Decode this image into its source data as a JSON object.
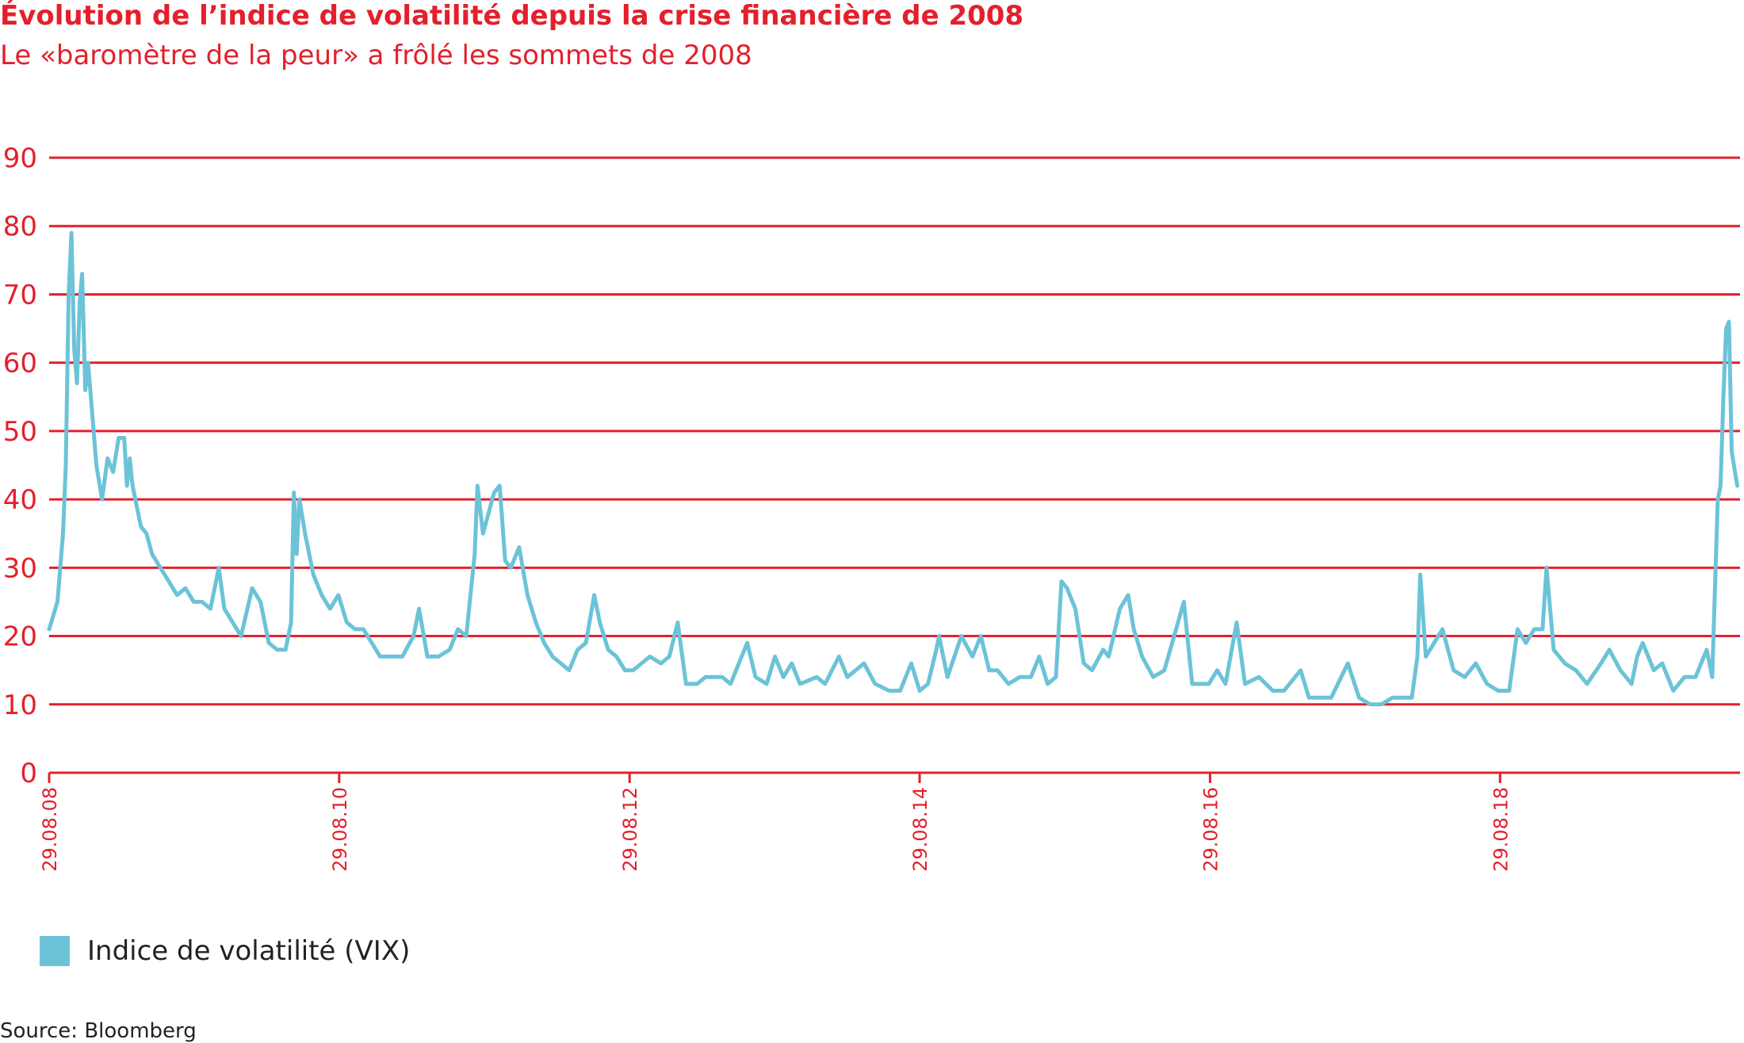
{
  "header": {
    "title": "Évolution de l’indice de volatilité depuis la crise financière de 2008",
    "subtitle": "Le «baromètre de la peur» a frôlé les sommets de 2008"
  },
  "legend": {
    "label": "Indice de volatilité (VIX)"
  },
  "source": "Source: Bloomberg",
  "colors": {
    "accent": "#e3202c",
    "series": "#6cc3d8",
    "text": "#222222"
  },
  "chart_data": {
    "type": "line",
    "title": "Évolution de l’indice de volatilité depuis la crise financière de 2008",
    "subtitle": "Le «baromètre de la peur» a frôlé les sommets de 2008",
    "xlabel": "",
    "ylabel": "",
    "ylim": [
      0,
      90
    ],
    "xlim": [
      "2008-08-29",
      "2020-04-24"
    ],
    "yticks": [
      "0",
      "10",
      "20",
      "30",
      "40",
      "50",
      "60",
      "70",
      "80",
      "90"
    ],
    "xticks": [
      {
        "label": "29.08.08",
        "date": "2008-08-29"
      },
      {
        "label": "29.08.10",
        "date": "2010-08-29"
      },
      {
        "label": "29.08.12",
        "date": "2012-08-29"
      },
      {
        "label": "29.08.14",
        "date": "2014-08-29"
      },
      {
        "label": "29.08.16",
        "date": "2016-08-29"
      },
      {
        "label": "29.08.18",
        "date": "2018-08-29"
      }
    ],
    "grid": true,
    "legend_position": "bottom-left",
    "series": [
      {
        "name": "Indice de volatilité (VIX)",
        "points": [
          [
            "2008-08-29",
            21
          ],
          [
            "2008-09-19",
            25
          ],
          [
            "2008-10-03",
            35
          ],
          [
            "2008-10-10",
            45
          ],
          [
            "2008-10-17",
            70
          ],
          [
            "2008-10-24",
            79
          ],
          [
            "2008-10-31",
            62
          ],
          [
            "2008-11-07",
            57
          ],
          [
            "2008-11-14",
            69
          ],
          [
            "2008-11-20",
            73
          ],
          [
            "2008-11-28",
            56
          ],
          [
            "2008-12-05",
            60
          ],
          [
            "2008-12-12",
            55
          ],
          [
            "2008-12-26",
            45
          ],
          [
            "2009-01-09",
            40
          ],
          [
            "2009-01-23",
            46
          ],
          [
            "2009-02-06",
            44
          ],
          [
            "2009-02-20",
            49
          ],
          [
            "2009-03-06",
            49
          ],
          [
            "2009-03-13",
            42
          ],
          [
            "2009-03-20",
            46
          ],
          [
            "2009-03-27",
            42
          ],
          [
            "2009-04-17",
            36
          ],
          [
            "2009-05-01",
            35
          ],
          [
            "2009-05-15",
            32
          ],
          [
            "2009-06-05",
            30
          ],
          [
            "2009-06-26",
            28
          ],
          [
            "2009-07-17",
            26
          ],
          [
            "2009-08-07",
            27
          ],
          [
            "2009-08-28",
            25
          ],
          [
            "2009-09-18",
            25
          ],
          [
            "2009-10-09",
            24
          ],
          [
            "2009-10-30",
            30
          ],
          [
            "2009-11-13",
            24
          ],
          [
            "2009-12-04",
            22
          ],
          [
            "2009-12-25",
            20
          ],
          [
            "2010-01-22",
            27
          ],
          [
            "2010-02-12",
            25
          ],
          [
            "2010-03-05",
            19
          ],
          [
            "2010-03-26",
            18
          ],
          [
            "2010-04-16",
            18
          ],
          [
            "2010-04-30",
            22
          ],
          [
            "2010-05-07",
            41
          ],
          [
            "2010-05-14",
            32
          ],
          [
            "2010-05-21",
            40
          ],
          [
            "2010-06-04",
            35
          ],
          [
            "2010-06-25",
            29
          ],
          [
            "2010-07-16",
            26
          ],
          [
            "2010-08-06",
            24
          ],
          [
            "2010-08-27",
            26
          ],
          [
            "2010-09-17",
            22
          ],
          [
            "2010-10-08",
            21
          ],
          [
            "2010-10-29",
            21
          ],
          [
            "2010-11-19",
            19
          ],
          [
            "2010-12-10",
            17
          ],
          [
            "2011-01-07",
            17
          ],
          [
            "2011-02-04",
            17
          ],
          [
            "2011-03-04",
            20
          ],
          [
            "2011-03-18",
            24
          ],
          [
            "2011-04-08",
            17
          ],
          [
            "2011-05-06",
            17
          ],
          [
            "2011-06-03",
            18
          ],
          [
            "2011-06-24",
            21
          ],
          [
            "2011-07-15",
            20
          ],
          [
            "2011-08-05",
            32
          ],
          [
            "2011-08-12",
            42
          ],
          [
            "2011-08-26",
            35
          ],
          [
            "2011-09-09",
            38
          ],
          [
            "2011-09-23",
            41
          ],
          [
            "2011-10-07",
            42
          ],
          [
            "2011-10-21",
            31
          ],
          [
            "2011-11-04",
            30
          ],
          [
            "2011-11-25",
            33
          ],
          [
            "2011-12-16",
            26
          ],
          [
            "2012-01-06",
            22
          ],
          [
            "2012-01-27",
            19
          ],
          [
            "2012-02-17",
            17
          ],
          [
            "2012-03-09",
            16
          ],
          [
            "2012-03-30",
            15
          ],
          [
            "2012-04-20",
            18
          ],
          [
            "2012-05-11",
            19
          ],
          [
            "2012-06-01",
            26
          ],
          [
            "2012-06-15",
            22
          ],
          [
            "2012-07-06",
            18
          ],
          [
            "2012-07-27",
            17
          ],
          [
            "2012-08-17",
            15
          ],
          [
            "2012-09-07",
            15
          ],
          [
            "2012-09-28",
            16
          ],
          [
            "2012-10-19",
            17
          ],
          [
            "2012-11-16",
            16
          ],
          [
            "2012-12-07",
            17
          ],
          [
            "2012-12-28",
            22
          ],
          [
            "2013-01-18",
            13
          ],
          [
            "2013-02-15",
            13
          ],
          [
            "2013-03-08",
            14
          ],
          [
            "2013-04-19",
            14
          ],
          [
            "2013-05-10",
            13
          ],
          [
            "2013-06-21",
            19
          ],
          [
            "2013-07-12",
            14
          ],
          [
            "2013-08-09",
            13
          ],
          [
            "2013-08-30",
            17
          ],
          [
            "2013-09-20",
            14
          ],
          [
            "2013-10-11",
            16
          ],
          [
            "2013-11-01",
            13
          ],
          [
            "2013-12-13",
            14
          ],
          [
            "2014-01-03",
            13
          ],
          [
            "2014-02-07",
            17
          ],
          [
            "2014-02-28",
            14
          ],
          [
            "2014-03-21",
            15
          ],
          [
            "2014-04-11",
            16
          ],
          [
            "2014-05-09",
            13
          ],
          [
            "2014-06-13",
            12
          ],
          [
            "2014-07-11",
            12
          ],
          [
            "2014-08-08",
            16
          ],
          [
            "2014-08-29",
            12
          ],
          [
            "2014-09-19",
            13
          ],
          [
            "2014-10-10",
            18
          ],
          [
            "2014-10-17",
            20
          ],
          [
            "2014-11-07",
            14
          ],
          [
            "2014-12-12",
            20
          ],
          [
            "2015-01-09",
            17
          ],
          [
            "2015-01-30",
            20
          ],
          [
            "2015-02-20",
            15
          ],
          [
            "2015-03-13",
            15
          ],
          [
            "2015-04-10",
            13
          ],
          [
            "2015-05-08",
            14
          ],
          [
            "2015-06-05",
            14
          ],
          [
            "2015-06-26",
            17
          ],
          [
            "2015-07-17",
            13
          ],
          [
            "2015-08-07",
            14
          ],
          [
            "2015-08-21",
            28
          ],
          [
            "2015-09-04",
            27
          ],
          [
            "2015-09-25",
            24
          ],
          [
            "2015-10-16",
            16
          ],
          [
            "2015-11-06",
            15
          ],
          [
            "2015-12-04",
            18
          ],
          [
            "2015-12-18",
            17
          ],
          [
            "2016-01-15",
            24
          ],
          [
            "2016-02-05",
            26
          ],
          [
            "2016-02-19",
            21
          ],
          [
            "2016-03-11",
            17
          ],
          [
            "2016-04-08",
            14
          ],
          [
            "2016-05-06",
            15
          ],
          [
            "2016-06-24",
            25
          ],
          [
            "2016-07-15",
            13
          ],
          [
            "2016-08-26",
            13
          ],
          [
            "2016-09-16",
            15
          ],
          [
            "2016-10-07",
            13
          ],
          [
            "2016-11-04",
            22
          ],
          [
            "2016-11-25",
            13
          ],
          [
            "2016-12-30",
            14
          ],
          [
            "2017-02-03",
            12
          ],
          [
            "2017-03-03",
            12
          ],
          [
            "2017-04-14",
            15
          ],
          [
            "2017-05-05",
            11
          ],
          [
            "2017-06-02",
            11
          ],
          [
            "2017-06-30",
            11
          ],
          [
            "2017-08-11",
            16
          ],
          [
            "2017-09-08",
            11
          ],
          [
            "2017-10-06",
            10
          ],
          [
            "2017-11-03",
            10
          ],
          [
            "2017-12-01",
            11
          ],
          [
            "2017-12-29",
            11
          ],
          [
            "2018-01-19",
            11
          ],
          [
            "2018-02-02",
            17
          ],
          [
            "2018-02-09",
            29
          ],
          [
            "2018-02-23",
            17
          ],
          [
            "2018-03-16",
            19
          ],
          [
            "2018-04-06",
            21
          ],
          [
            "2018-05-04",
            15
          ],
          [
            "2018-06-01",
            14
          ],
          [
            "2018-06-29",
            16
          ],
          [
            "2018-07-27",
            13
          ],
          [
            "2018-08-24",
            12
          ],
          [
            "2018-09-21",
            12
          ],
          [
            "2018-10-12",
            21
          ],
          [
            "2018-11-02",
            19
          ],
          [
            "2018-11-23",
            21
          ],
          [
            "2018-12-14",
            21
          ],
          [
            "2018-12-24",
            30
          ],
          [
            "2019-01-11",
            18
          ],
          [
            "2019-02-08",
            16
          ],
          [
            "2019-03-08",
            15
          ],
          [
            "2019-04-05",
            13
          ],
          [
            "2019-05-10",
            16
          ],
          [
            "2019-05-31",
            18
          ],
          [
            "2019-06-28",
            15
          ],
          [
            "2019-07-26",
            13
          ],
          [
            "2019-08-09",
            17
          ],
          [
            "2019-08-23",
            19
          ],
          [
            "2019-09-20",
            15
          ],
          [
            "2019-10-11",
            16
          ],
          [
            "2019-11-08",
            12
          ],
          [
            "2019-12-06",
            14
          ],
          [
            "2020-01-03",
            14
          ],
          [
            "2020-01-31",
            18
          ],
          [
            "2020-02-14",
            14
          ],
          [
            "2020-02-28",
            40
          ],
          [
            "2020-03-06",
            42
          ],
          [
            "2020-03-13",
            55
          ],
          [
            "2020-03-20",
            65
          ],
          [
            "2020-03-27",
            66
          ],
          [
            "2020-04-03",
            47
          ],
          [
            "2020-04-17",
            42
          ]
        ]
      }
    ]
  }
}
